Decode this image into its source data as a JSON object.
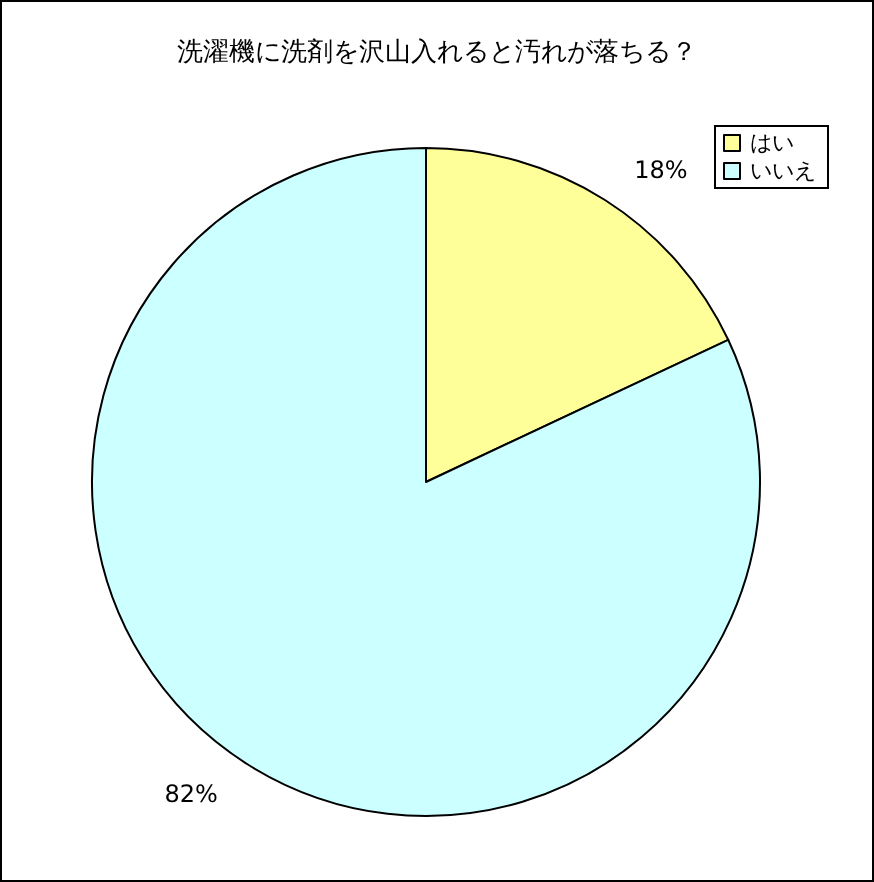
{
  "chart_data": {
    "type": "pie",
    "title": "洗濯機に洗剤を沢山入れると汚れが落ちる？",
    "categories": [
      "はい",
      "いいえ"
    ],
    "values": [
      18,
      82
    ],
    "colors": [
      "#ffff99",
      "#ccffff"
    ],
    "value_labels": [
      "18%",
      "82%"
    ],
    "legend": "top right"
  }
}
